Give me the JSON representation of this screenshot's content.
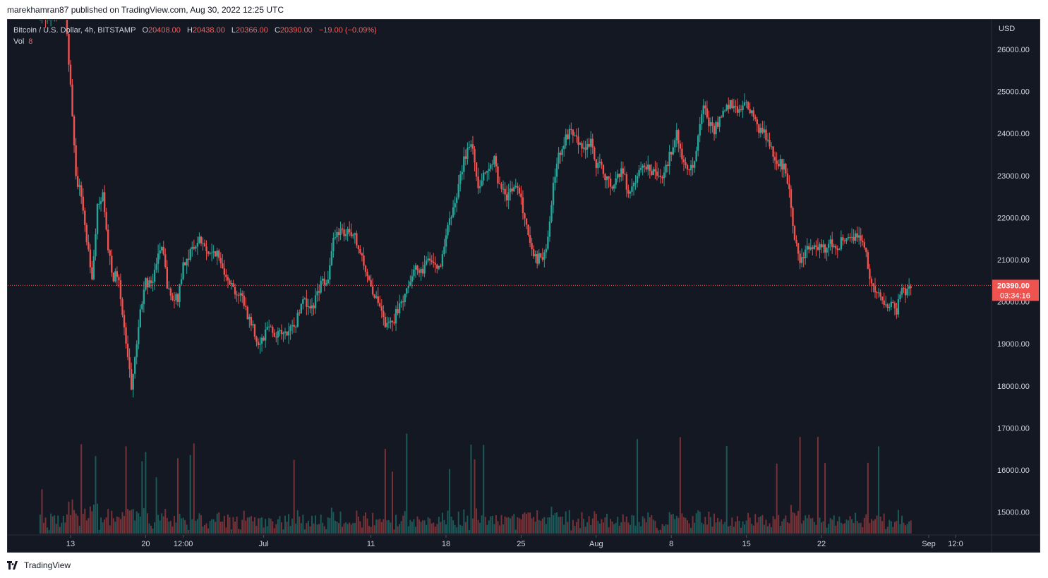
{
  "publish": {
    "line": "marekhamran87 published on TradingView.com, Aug 30, 2022 12:25 UTC"
  },
  "legend": {
    "symbol": "Bitcoin / U.S. Dollar, 4h, BITSTAMP",
    "o_label": "O",
    "o_value": "20408.00",
    "h_label": "H",
    "h_value": "20438.00",
    "l_label": "L",
    "l_value": "20366.00",
    "c_label": "C",
    "c_value": "20390.00",
    "change": "−19.00 (−0.09%)",
    "vol_label": "Vol",
    "vol_value": "8"
  },
  "footer": {
    "brand": "TradingView"
  },
  "colors": {
    "background": "#141823",
    "up": "#26a69a",
    "down": "#ef5350",
    "text": "#d1d4dc",
    "grid": "#1f2330",
    "price_line": "#ef5350"
  },
  "chart_data": {
    "type": "candlestick",
    "symbol": "Bitcoin / U.S. Dollar",
    "interval": "4h",
    "exchange": "BITSTAMP",
    "currency": "USD",
    "last_price": "20390.00",
    "countdown": "03:34:16",
    "y_ticks": [
      "26000.00",
      "25000.00",
      "24000.00",
      "23000.00",
      "22000.00",
      "21000.00",
      "20000.00",
      "19000.00",
      "18000.00",
      "17000.00",
      "16000.00",
      "15000.00"
    ],
    "x_ticks": [
      "13",
      "20",
      "12:00",
      "Jul",
      "11",
      "18",
      "25",
      "Aug",
      "8",
      "15",
      "22",
      "Sep",
      "12:0"
    ],
    "ylim": [
      14500,
      26700
    ],
    "grid": false,
    "price_path": [
      [
        "Jun 10 00:00",
        26800
      ],
      [
        "Jun 12 12:00",
        26900
      ],
      [
        "Jun 13 00:00",
        25200
      ],
      [
        "Jun 13 12:00",
        23000
      ],
      [
        "Jun 14 00:00",
        22500
      ],
      [
        "Jun 14 12:00",
        21500
      ],
      [
        "Jun 15 00:00",
        20600
      ],
      [
        "Jun 15 12:00",
        22200
      ],
      [
        "Jun 16 00:00",
        22500
      ],
      [
        "Jun 16 12:00",
        21200
      ],
      [
        "Jun 17 00:00",
        20600
      ],
      [
        "Jun 17 12:00",
        20600
      ],
      [
        "Jun 18 00:00",
        19300
      ],
      [
        "Jun 18 12:00",
        18300
      ],
      [
        "Jun 18 18:00",
        17900
      ],
      [
        "Jun 19 00:00",
        18700
      ],
      [
        "Jun 19 12:00",
        19800
      ],
      [
        "Jun 20 00:00",
        20500
      ],
      [
        "Jun 20 12:00",
        20400
      ],
      [
        "Jun 21 00:00",
        21000
      ],
      [
        "Jun 21 12:00",
        21300
      ],
      [
        "Jun 22 00:00",
        20400
      ],
      [
        "Jun 22 12:00",
        20000
      ],
      [
        "Jun 23 00:00",
        20100
      ],
      [
        "Jun 23 12:00",
        20900
      ],
      [
        "Jun 24 00:00",
        21100
      ],
      [
        "Jun 24 12:00",
        21300
      ],
      [
        "Jun 25 00:00",
        21500
      ],
      [
        "Jun 25 12:00",
        21300
      ],
      [
        "Jun 26 00:00",
        21100
      ],
      [
        "Jun 26 12:00",
        21200
      ],
      [
        "Jun 27 00:00",
        20900
      ],
      [
        "Jun 27 12:00",
        20700
      ],
      [
        "Jun 28 00:00",
        20400
      ],
      [
        "Jun 28 12:00",
        20200
      ],
      [
        "Jun 29 00:00",
        20100
      ],
      [
        "Jun 29 12:00",
        19700
      ],
      [
        "Jun 30 00:00",
        19400
      ],
      [
        "Jun 30 12:00",
        19000
      ],
      [
        "Jul 1 00:00",
        19200
      ],
      [
        "Jul 1 12:00",
        19500
      ],
      [
        "Jul 2 00:00",
        19200
      ],
      [
        "Jul 2 12:00",
        19300
      ],
      [
        "Jul 3 00:00",
        19200
      ],
      [
        "Jul 3 12:00",
        19300
      ],
      [
        "Jul 4 00:00",
        19500
      ],
      [
        "Jul 4 12:00",
        20000
      ],
      [
        "Jul 5 00:00",
        20000
      ],
      [
        "Jul 5 12:00",
        19800
      ],
      [
        "Jul 6 00:00",
        20200
      ],
      [
        "Jul 6 12:00",
        20500
      ],
      [
        "Jul 7 00:00",
        20600
      ],
      [
        "Jul 7 12:00",
        21400
      ],
      [
        "Jul 8 00:00",
        21700
      ],
      [
        "Jul 8 12:00",
        21600
      ],
      [
        "Jul 9 00:00",
        21600
      ],
      [
        "Jul 9 12:00",
        21500
      ],
      [
        "Jul 10 00:00",
        21100
      ],
      [
        "Jul 10 12:00",
        20800
      ],
      [
        "Jul 11 00:00",
        20400
      ],
      [
        "Jul 11 12:00",
        20000
      ],
      [
        "Jul 12 00:00",
        19700
      ],
      [
        "Jul 12 12:00",
        19400
      ],
      [
        "Jul 13 00:00",
        19500
      ],
      [
        "Jul 13 12:00",
        19800
      ],
      [
        "Jul 14 00:00",
        20100
      ],
      [
        "Jul 14 12:00",
        20500
      ],
      [
        "Jul 15 00:00",
        20700
      ],
      [
        "Jul 15 12:00",
        20800
      ],
      [
        "Jul 16 00:00",
        20800
      ],
      [
        "Jul 16 12:00",
        21100
      ],
      [
        "Jul 17 00:00",
        20900
      ],
      [
        "Jul 17 12:00",
        20900
      ],
      [
        "Jul 18 00:00",
        21600
      ],
      [
        "Jul 18 12:00",
        22000
      ],
      [
        "Jul 19 00:00",
        22500
      ],
      [
        "Jul 19 12:00",
        23200
      ],
      [
        "Jul 20 00:00",
        23600
      ],
      [
        "Jul 20 12:00",
        23700
      ],
      [
        "Jul 21 00:00",
        22700
      ],
      [
        "Jul 21 12:00",
        23100
      ],
      [
        "Jul 22 00:00",
        23100
      ],
      [
        "Jul 22 12:00",
        23400
      ],
      [
        "Jul 23 00:00",
        22700
      ],
      [
        "Jul 23 12:00",
        22500
      ],
      [
        "Jul 24 00:00",
        22600
      ],
      [
        "Jul 24 12:00",
        22800
      ],
      [
        "Jul 25 00:00",
        22400
      ],
      [
        "Jul 25 12:00",
        21800
      ],
      [
        "Jul 26 00:00",
        21300
      ],
      [
        "Jul 26 12:00",
        21000
      ],
      [
        "Jul 27 00:00",
        21100
      ],
      [
        "Jul 27 12:00",
        21500
      ],
      [
        "Jul 28 00:00",
        22700
      ],
      [
        "Jul 28 12:00",
        23500
      ],
      [
        "Jul 29 00:00",
        23800
      ],
      [
        "Jul 29 12:00",
        24000
      ],
      [
        "Jul 30 00:00",
        23900
      ],
      [
        "Jul 30 12:00",
        23800
      ],
      [
        "Jul 31 00:00",
        23600
      ],
      [
        "Jul 31 12:00",
        23800
      ],
      [
        "Aug 1 00:00",
        23300
      ],
      [
        "Aug 1 12:00",
        23200
      ],
      [
        "Aug 2 00:00",
        22900
      ],
      [
        "Aug 2 12:00",
        22800
      ],
      [
        "Aug 3 00:00",
        23000
      ],
      [
        "Aug 3 12:00",
        23100
      ],
      [
        "Aug 4 00:00",
        22600
      ],
      [
        "Aug 4 12:00",
        22700
      ],
      [
        "Aug 5 00:00",
        23100
      ],
      [
        "Aug 5 12:00",
        23300
      ],
      [
        "Aug 6 00:00",
        23100
      ],
      [
        "Aug 6 12:00",
        23100
      ],
      [
        "Aug 7 00:00",
        23000
      ],
      [
        "Aug 7 12:00",
        23200
      ],
      [
        "Aug 8 00:00",
        23600
      ],
      [
        "Aug 8 12:00",
        24000
      ],
      [
        "Aug 9 00:00",
        23400
      ],
      [
        "Aug 9 12:00",
        23100
      ],
      [
        "Aug 10 00:00",
        23200
      ],
      [
        "Aug 10 12:00",
        23900
      ],
      [
        "Aug 11 00:00",
        24700
      ],
      [
        "Aug 11 12:00",
        24300
      ],
      [
        "Aug 12 00:00",
        24100
      ],
      [
        "Aug 12 12:00",
        24300
      ],
      [
        "Aug 13 00:00",
        24500
      ],
      [
        "Aug 13 12:00",
        24700
      ],
      [
        "Aug 14 00:00",
        24600
      ],
      [
        "Aug 14 12:00",
        24500
      ],
      [
        "Aug 15 00:00",
        24700
      ],
      [
        "Aug 15 12:00",
        24500
      ],
      [
        "Aug 16 00:00",
        24200
      ],
      [
        "Aug 16 12:00",
        24000
      ],
      [
        "Aug 17 00:00",
        23900
      ],
      [
        "Aug 17 12:00",
        23500
      ],
      [
        "Aug 18 00:00",
        23300
      ],
      [
        "Aug 18 12:00",
        23200
      ],
      [
        "Aug 19 00:00",
        22800
      ],
      [
        "Aug 19 12:00",
        21400
      ],
      [
        "Aug 20 00:00",
        21000
      ],
      [
        "Aug 20 12:00",
        21200
      ],
      [
        "Aug 21 00:00",
        21300
      ],
      [
        "Aug 21 12:00",
        21400
      ],
      [
        "Aug 22 00:00",
        21200
      ],
      [
        "Aug 22 12:00",
        21300
      ],
      [
        "Aug 23 00:00",
        21400
      ],
      [
        "Aug 23 12:00",
        21300
      ],
      [
        "Aug 24 00:00",
        21500
      ],
      [
        "Aug 24 12:00",
        21600
      ],
      [
        "Aug 25 00:00",
        21500
      ],
      [
        "Aug 25 12:00",
        21600
      ],
      [
        "Aug 26 00:00",
        21400
      ],
      [
        "Aug 26 12:00",
        20600
      ],
      [
        "Aug 27 00:00",
        20200
      ],
      [
        "Aug 27 12:00",
        20100
      ],
      [
        "Aug 28 00:00",
        20000
      ],
      [
        "Aug 28 12:00",
        19900
      ],
      [
        "Aug 29 00:00",
        19800
      ],
      [
        "Aug 29 12:00",
        20200
      ],
      [
        "Aug 30 00:00",
        20300
      ],
      [
        "Aug 30 08:00",
        20390
      ]
    ]
  }
}
